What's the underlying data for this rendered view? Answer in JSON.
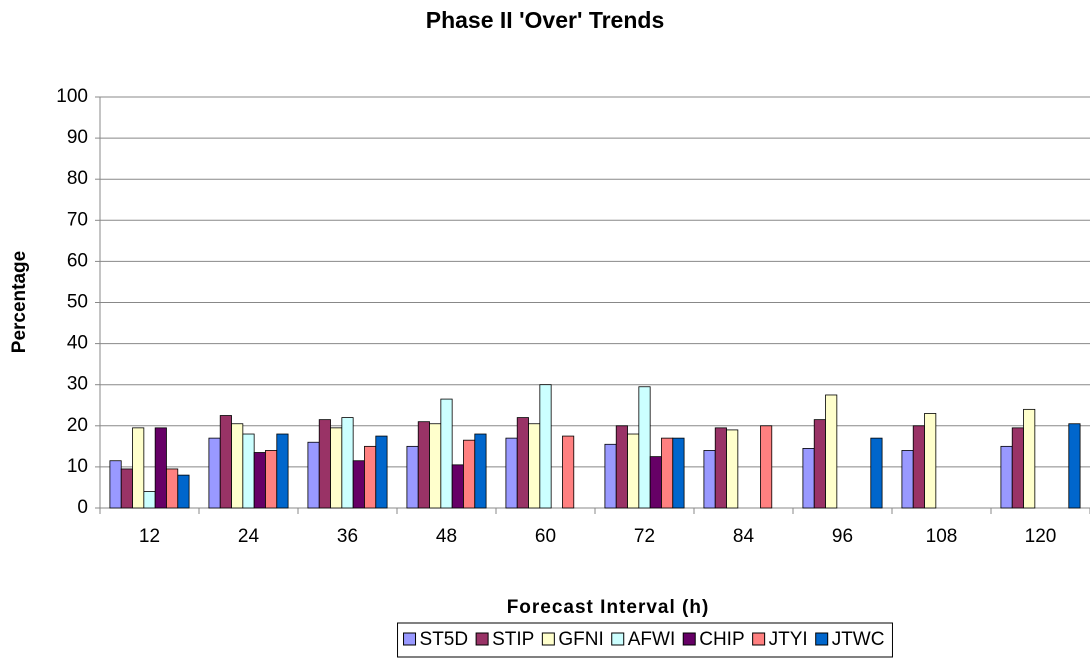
{
  "chart_data": {
    "type": "bar",
    "title": "Phase II 'Over' Trends",
    "x_label": "Forecast Interval (h)",
    "y_label": "Percentage",
    "categories": [
      "12",
      "24",
      "36",
      "48",
      "60",
      "72",
      "84",
      "96",
      "108",
      "120"
    ],
    "series": [
      {
        "name": "ST5D",
        "color": "#9999ff",
        "values": [
          11.5,
          17,
          16,
          15,
          17,
          15.5,
          14,
          14.5,
          14,
          15
        ]
      },
      {
        "name": "STIP",
        "color": "#993366",
        "values": [
          9.5,
          22.5,
          21.5,
          21,
          22,
          20,
          19.5,
          21.5,
          20,
          19.5
        ]
      },
      {
        "name": "GFNI",
        "color": "#ffffcc",
        "values": [
          19.5,
          20.5,
          19.5,
          20.5,
          20.5,
          18,
          19,
          27.5,
          23,
          24
        ]
      },
      {
        "name": "AFWI",
        "color": "#ccffff",
        "values": [
          4,
          18,
          22,
          26.5,
          30,
          29.5,
          null,
          null,
          null,
          null
        ]
      },
      {
        "name": "CHIP",
        "color": "#660066",
        "values": [
          19.5,
          13.5,
          11.5,
          10.5,
          null,
          12.5,
          null,
          null,
          null,
          null
        ]
      },
      {
        "name": "JTYI",
        "color": "#ff8080",
        "values": [
          9.5,
          14,
          15,
          16.5,
          17.5,
          17,
          20,
          null,
          null,
          null
        ]
      },
      {
        "name": "JTWC",
        "color": "#0066cc",
        "values": [
          8,
          18,
          17.5,
          18,
          null,
          17,
          null,
          17,
          null,
          20.5
        ]
      }
    ],
    "ylim": [
      0,
      100
    ],
    "yticks": [
      0,
      10,
      20,
      30,
      40,
      50,
      60,
      70,
      80,
      90,
      100
    ],
    "grid": true
  }
}
